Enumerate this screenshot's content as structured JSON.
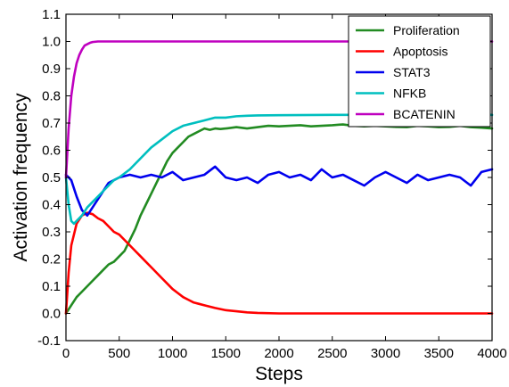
{
  "chart_data": {
    "type": "line",
    "title": "",
    "xlabel": "Steps",
    "ylabel": "Activation frequency",
    "xlim": [
      0,
      4000
    ],
    "ylim": [
      -0.1,
      1.1
    ],
    "xticks": [
      0,
      500,
      1000,
      1500,
      2000,
      2500,
      3000,
      3500,
      4000
    ],
    "yticks": [
      -0.1,
      0.0,
      0.1,
      0.2,
      0.3,
      0.4,
      0.5,
      0.6,
      0.7,
      0.8,
      0.9,
      1.0,
      1.1
    ],
    "grid": false,
    "legend_position": "top-right",
    "series": [
      {
        "name": "Proliferation",
        "color": "#228b22",
        "x": [
          0,
          50,
          100,
          150,
          200,
          250,
          300,
          350,
          400,
          450,
          500,
          550,
          600,
          650,
          700,
          750,
          800,
          850,
          900,
          950,
          1000,
          1050,
          1100,
          1150,
          1200,
          1250,
          1300,
          1350,
          1400,
          1450,
          1500,
          1600,
          1700,
          1800,
          1900,
          2000,
          2100,
          2200,
          2300,
          2400,
          2500,
          2600,
          2700,
          2800,
          2900,
          3000,
          3100,
          3200,
          3300,
          3400,
          3500,
          3600,
          3700,
          3800,
          3900,
          4000
        ],
        "y": [
          0.0,
          0.03,
          0.06,
          0.08,
          0.1,
          0.12,
          0.14,
          0.16,
          0.18,
          0.19,
          0.21,
          0.23,
          0.27,
          0.31,
          0.36,
          0.4,
          0.44,
          0.48,
          0.52,
          0.56,
          0.59,
          0.61,
          0.63,
          0.65,
          0.66,
          0.67,
          0.68,
          0.675,
          0.68,
          0.678,
          0.68,
          0.685,
          0.68,
          0.685,
          0.69,
          0.688,
          0.69,
          0.692,
          0.688,
          0.69,
          0.692,
          0.695,
          0.69,
          0.688,
          0.69,
          0.688,
          0.686,
          0.685,
          0.69,
          0.688,
          0.685,
          0.686,
          0.69,
          0.685,
          0.683,
          0.68
        ]
      },
      {
        "name": "Apoptosis",
        "color": "#ff0000",
        "x": [
          0,
          25,
          50,
          100,
          150,
          200,
          250,
          300,
          350,
          400,
          450,
          500,
          550,
          600,
          650,
          700,
          750,
          800,
          850,
          900,
          950,
          1000,
          1050,
          1100,
          1150,
          1200,
          1250,
          1300,
          1400,
          1500,
          1600,
          1700,
          1800,
          2000,
          2500,
          3000,
          3500,
          4000
        ],
        "y": [
          0.0,
          0.15,
          0.25,
          0.33,
          0.36,
          0.37,
          0.365,
          0.35,
          0.34,
          0.32,
          0.3,
          0.29,
          0.27,
          0.25,
          0.23,
          0.21,
          0.19,
          0.17,
          0.15,
          0.13,
          0.11,
          0.09,
          0.075,
          0.06,
          0.05,
          0.04,
          0.035,
          0.03,
          0.02,
          0.012,
          0.008,
          0.004,
          0.002,
          0.0,
          0.0,
          0.0,
          0.0,
          0.0
        ]
      },
      {
        "name": "STAT3",
        "color": "#0000ee",
        "x": [
          0,
          50,
          100,
          150,
          200,
          250,
          300,
          350,
          400,
          450,
          500,
          600,
          700,
          800,
          900,
          1000,
          1100,
          1200,
          1300,
          1400,
          1500,
          1600,
          1700,
          1800,
          1900,
          2000,
          2100,
          2200,
          2300,
          2400,
          2500,
          2600,
          2700,
          2800,
          2900,
          3000,
          3100,
          3200,
          3300,
          3400,
          3500,
          3600,
          3700,
          3800,
          3900,
          4000
        ],
        "y": [
          0.51,
          0.49,
          0.43,
          0.38,
          0.36,
          0.39,
          0.42,
          0.45,
          0.48,
          0.49,
          0.5,
          0.51,
          0.5,
          0.51,
          0.5,
          0.52,
          0.49,
          0.5,
          0.51,
          0.54,
          0.5,
          0.49,
          0.5,
          0.48,
          0.51,
          0.52,
          0.5,
          0.51,
          0.49,
          0.53,
          0.5,
          0.51,
          0.49,
          0.47,
          0.5,
          0.52,
          0.5,
          0.48,
          0.51,
          0.49,
          0.5,
          0.51,
          0.5,
          0.47,
          0.52,
          0.53
        ]
      },
      {
        "name": "NFKB",
        "color": "#00bfbf",
        "x": [
          0,
          25,
          50,
          75,
          100,
          150,
          200,
          250,
          300,
          350,
          400,
          450,
          500,
          600,
          700,
          800,
          900,
          1000,
          1100,
          1200,
          1300,
          1400,
          1500,
          1600,
          1700,
          1800,
          2000,
          2500,
          3000,
          3500,
          4000
        ],
        "y": [
          0.5,
          0.4,
          0.34,
          0.33,
          0.34,
          0.36,
          0.39,
          0.41,
          0.43,
          0.45,
          0.47,
          0.49,
          0.5,
          0.53,
          0.57,
          0.61,
          0.64,
          0.67,
          0.69,
          0.7,
          0.71,
          0.72,
          0.72,
          0.725,
          0.727,
          0.728,
          0.729,
          0.73,
          0.73,
          0.73,
          0.73
        ]
      },
      {
        "name": "BCATENIN",
        "color": "#bf00bf",
        "x": [
          0,
          25,
          50,
          75,
          100,
          125,
          150,
          175,
          200,
          225,
          250,
          300,
          400,
          500,
          1000,
          2000,
          3000,
          4000
        ],
        "y": [
          0.5,
          0.68,
          0.8,
          0.87,
          0.92,
          0.95,
          0.97,
          0.985,
          0.99,
          0.995,
          0.998,
          1.0,
          1.0,
          1.0,
          1.0,
          1.0,
          1.0,
          1.0
        ]
      }
    ]
  }
}
